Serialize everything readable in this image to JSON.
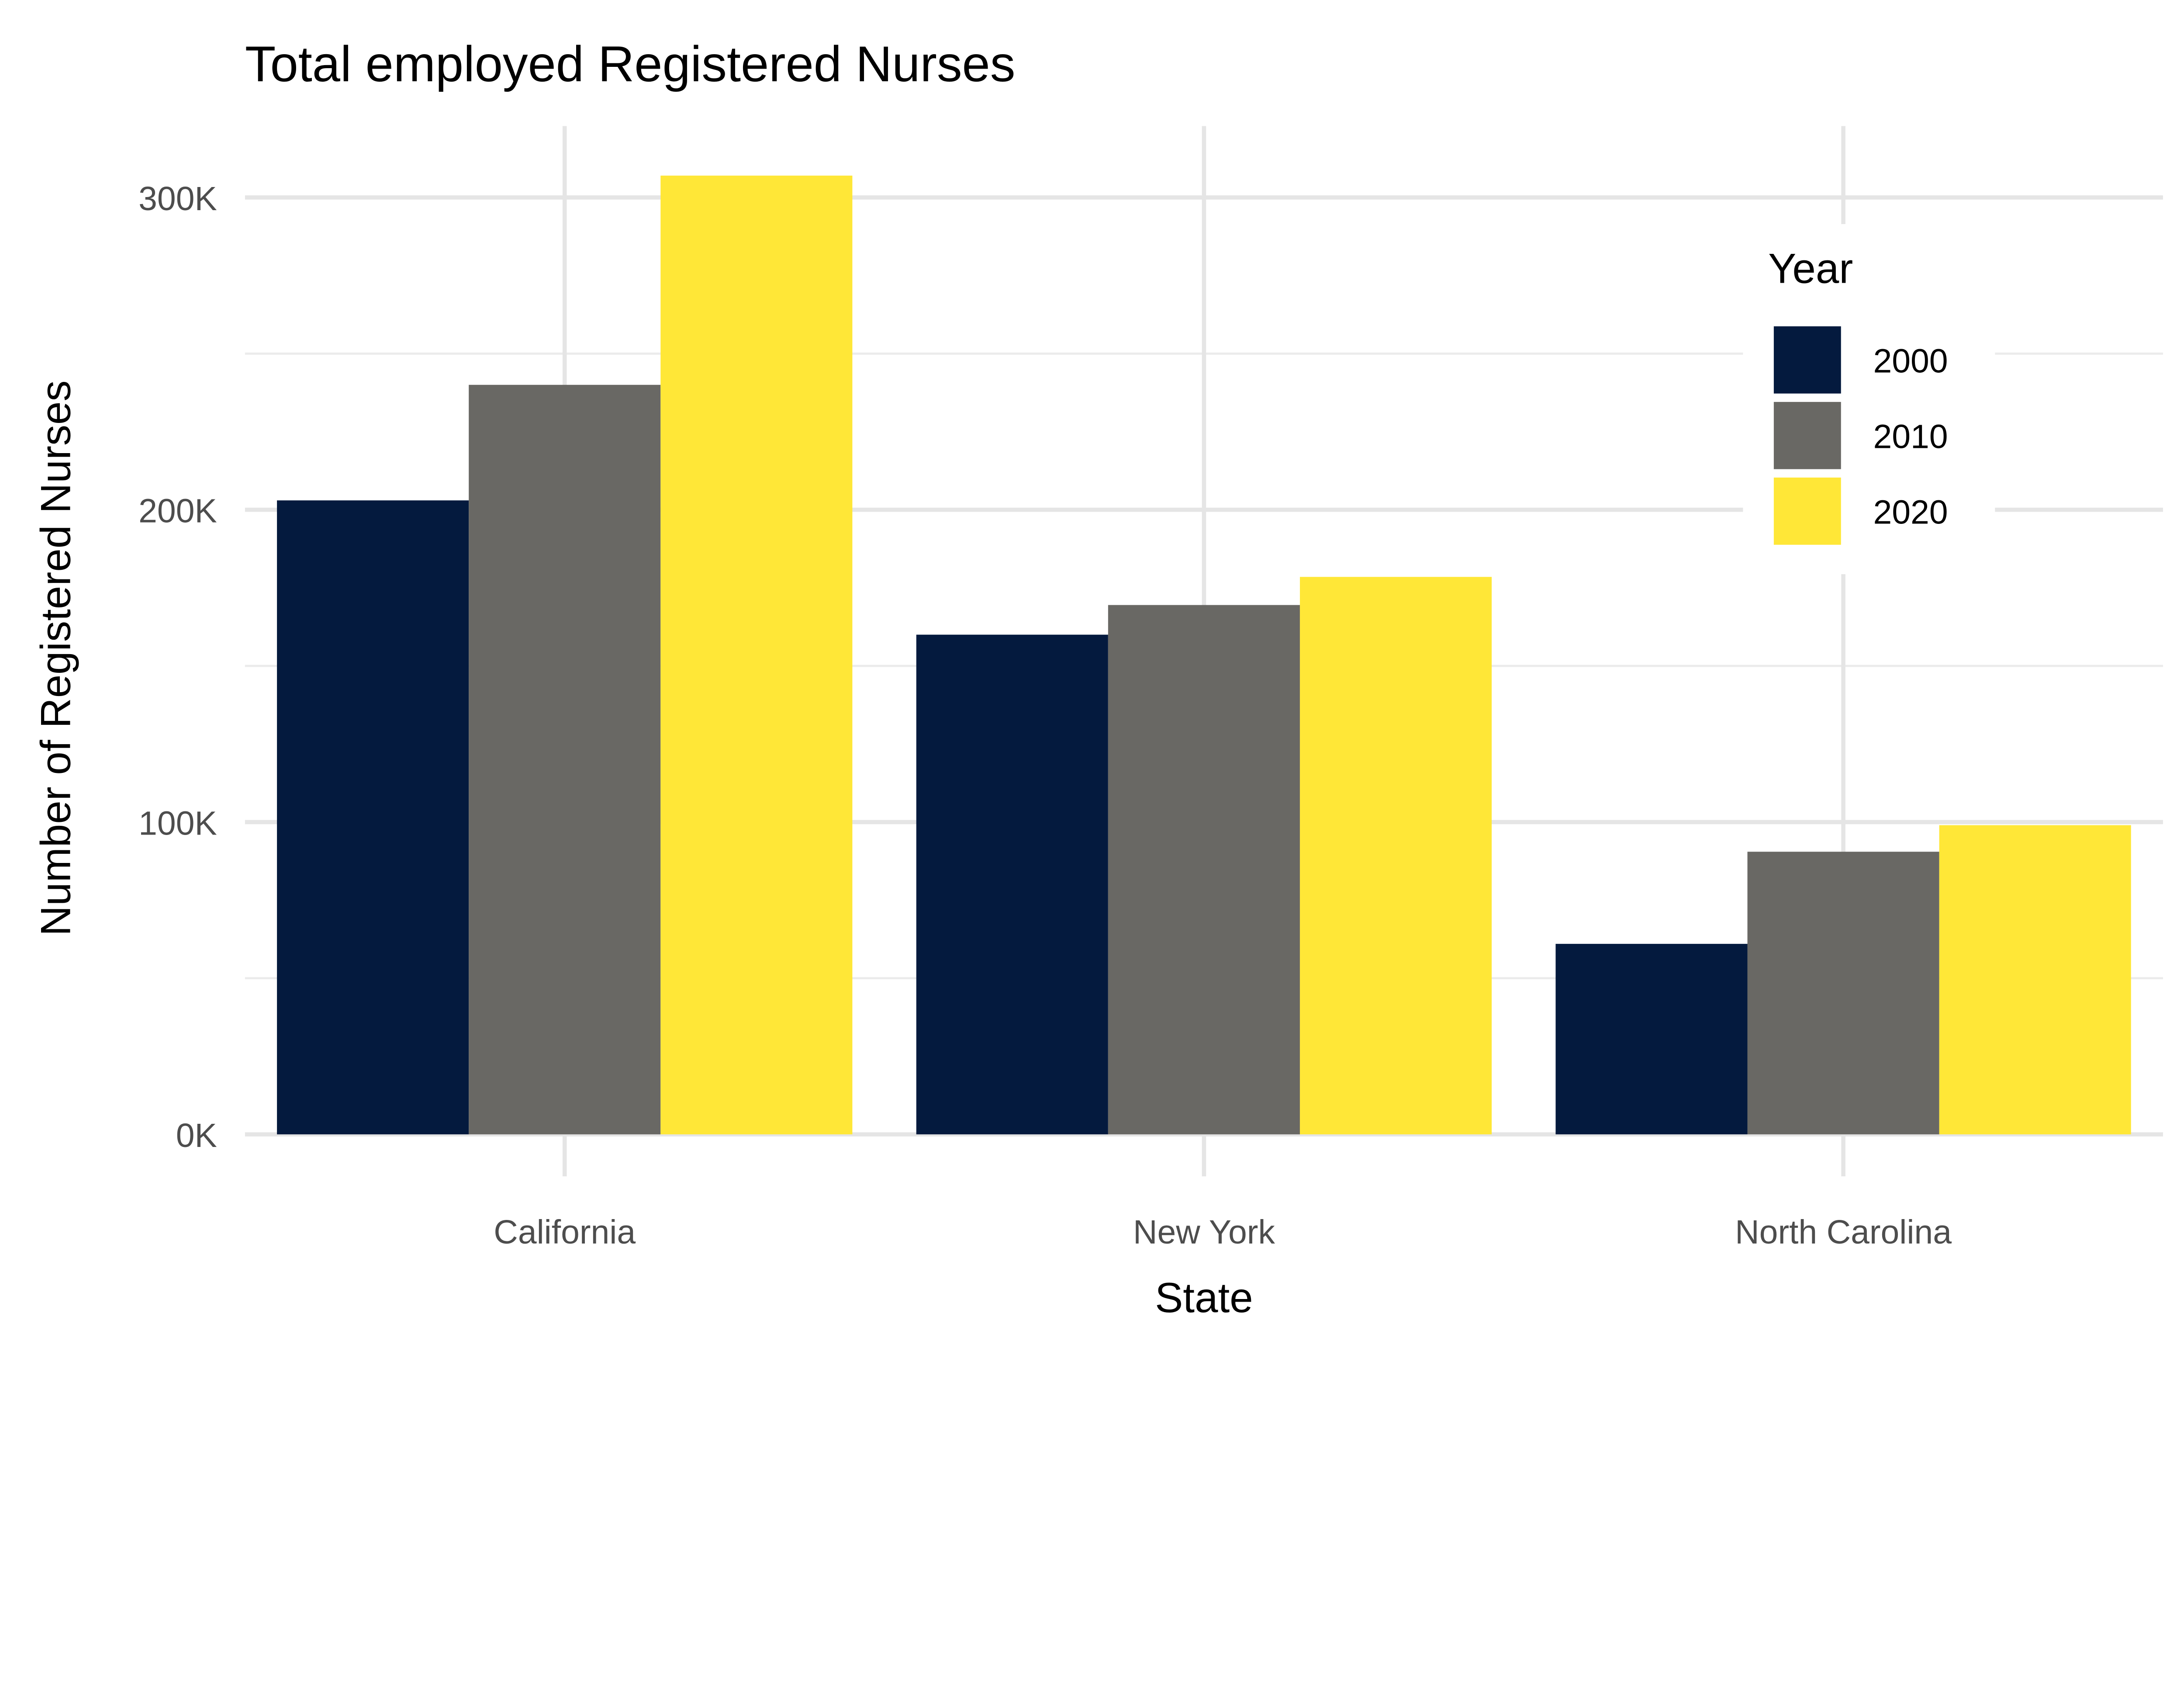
{
  "chart_data": {
    "type": "bar",
    "title": "Total employed Registered Nurses",
    "xlabel": "State",
    "ylabel": "Number of Registered Nurses",
    "categories": [
      "California",
      "New York",
      "North Carolina"
    ],
    "series": [
      {
        "name": "2000",
        "color": "#041A3E",
        "values": [
          203000,
          160000,
          61000
        ]
      },
      {
        "name": "2010",
        "color": "#696864",
        "values": [
          240000,
          169500,
          90500
        ]
      },
      {
        "name": "2020",
        "color": "#FFE737",
        "values": [
          307000,
          178500,
          99000
        ]
      }
    ],
    "ylim": [
      0,
      322000
    ],
    "yticks": [
      0,
      100000,
      200000,
      300000
    ],
    "ytick_labels": [
      "0K",
      "100K",
      "200K",
      "300K"
    ],
    "legend": {
      "title": "Year",
      "placement": "top-right"
    },
    "grid": true
  }
}
